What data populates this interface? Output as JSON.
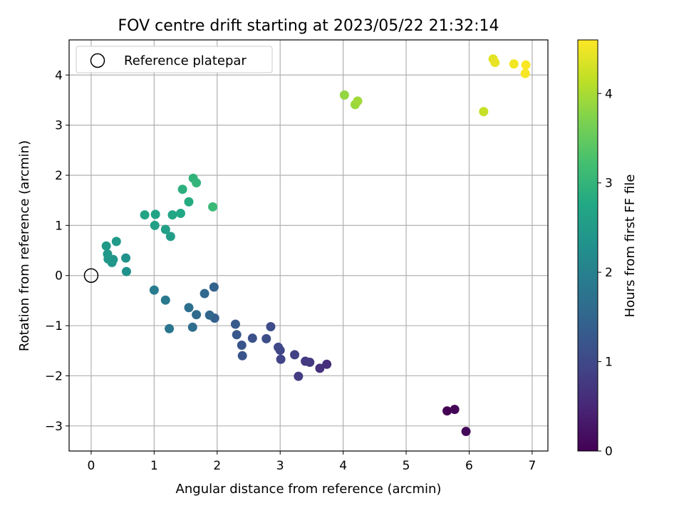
{
  "chart_data": {
    "type": "scatter",
    "title": "FOV centre drift starting at 2023/05/22 21:32:14",
    "xlabel": "Angular distance from reference (arcmin)",
    "ylabel": "Rotation from reference (arcmin)",
    "xlim": [
      -0.35,
      7.25
    ],
    "ylim": [
      -3.5,
      4.7
    ],
    "xticks": [
      0,
      1,
      2,
      3,
      4,
      5,
      6,
      7
    ],
    "xtick_labels": [
      "0",
      "1",
      "2",
      "3",
      "4",
      "5",
      "6",
      "7"
    ],
    "yticks": [
      -3,
      -2,
      -1,
      0,
      1,
      2,
      3,
      4
    ],
    "ytick_labels": [
      "−3",
      "−2",
      "−1",
      "0",
      "1",
      "2",
      "3",
      "4"
    ],
    "grid": true,
    "legend": {
      "position": "upper-left",
      "entries": [
        "Reference platepar"
      ]
    },
    "reference_point": {
      "x": 0,
      "y": 0
    },
    "colorbar": {
      "label": "Hours from first FF file",
      "colormap": "viridis",
      "range": [
        0,
        4.6
      ],
      "ticks": [
        0,
        1,
        2,
        3,
        4
      ],
      "tick_labels": [
        "0",
        "1",
        "2",
        "3",
        "4"
      ]
    },
    "points": [
      {
        "x": 5.65,
        "y": -2.7,
        "c": 0.0
      },
      {
        "x": 5.77,
        "y": -2.67,
        "c": 0.05
      },
      {
        "x": 5.95,
        "y": -3.11,
        "c": 0.1
      },
      {
        "x": 3.74,
        "y": -1.77,
        "c": 0.6
      },
      {
        "x": 3.63,
        "y": -1.85,
        "c": 0.65
      },
      {
        "x": 3.47,
        "y": -1.73,
        "c": 0.75
      },
      {
        "x": 3.4,
        "y": -1.71,
        "c": 0.78
      },
      {
        "x": 3.29,
        "y": -2.01,
        "c": 0.82
      },
      {
        "x": 3.23,
        "y": -1.58,
        "c": 0.87
      },
      {
        "x": 3.01,
        "y": -1.67,
        "c": 0.92
      },
      {
        "x": 3.0,
        "y": -1.49,
        "c": 0.95
      },
      {
        "x": 2.97,
        "y": -1.43,
        "c": 1.0
      },
      {
        "x": 2.85,
        "y": -1.02,
        "c": 1.05
      },
      {
        "x": 2.78,
        "y": -1.26,
        "c": 1.1
      },
      {
        "x": 2.56,
        "y": -1.25,
        "c": 1.15
      },
      {
        "x": 2.4,
        "y": -1.6,
        "c": 1.2
      },
      {
        "x": 2.39,
        "y": -1.39,
        "c": 1.22
      },
      {
        "x": 2.31,
        "y": -1.18,
        "c": 1.27
      },
      {
        "x": 2.29,
        "y": -0.97,
        "c": 1.32
      },
      {
        "x": 1.96,
        "y": -0.85,
        "c": 1.4
      },
      {
        "x": 1.95,
        "y": -0.23,
        "c": 1.45
      },
      {
        "x": 1.88,
        "y": -0.79,
        "c": 1.5
      },
      {
        "x": 1.8,
        "y": -0.36,
        "c": 1.55
      },
      {
        "x": 1.67,
        "y": -0.78,
        "c": 1.6
      },
      {
        "x": 1.61,
        "y": -1.03,
        "c": 1.65
      },
      {
        "x": 1.55,
        "y": -0.64,
        "c": 1.7
      },
      {
        "x": 1.24,
        "y": -1.06,
        "c": 1.78
      },
      {
        "x": 1.18,
        "y": -0.49,
        "c": 1.85
      },
      {
        "x": 1.0,
        "y": -0.29,
        "c": 1.92
      },
      {
        "x": 0.56,
        "y": 0.08,
        "c": 2.3
      },
      {
        "x": 0.55,
        "y": 0.35,
        "c": 2.33
      },
      {
        "x": 0.33,
        "y": 0.26,
        "c": 2.37
      },
      {
        "x": 0.35,
        "y": 0.32,
        "c": 2.4
      },
      {
        "x": 0.27,
        "y": 0.33,
        "c": 2.42
      },
      {
        "x": 0.26,
        "y": 0.43,
        "c": 2.44
      },
      {
        "x": 0.24,
        "y": 0.59,
        "c": 2.46
      },
      {
        "x": 0.4,
        "y": 0.68,
        "c": 2.48
      },
      {
        "x": 1.26,
        "y": 0.78,
        "c": 2.55
      },
      {
        "x": 1.18,
        "y": 0.92,
        "c": 2.58
      },
      {
        "x": 1.01,
        "y": 1.0,
        "c": 2.62
      },
      {
        "x": 1.02,
        "y": 1.22,
        "c": 2.65
      },
      {
        "x": 0.85,
        "y": 1.21,
        "c": 2.68
      },
      {
        "x": 1.29,
        "y": 1.21,
        "c": 2.72
      },
      {
        "x": 1.42,
        "y": 1.24,
        "c": 2.76
      },
      {
        "x": 1.55,
        "y": 1.47,
        "c": 2.82
      },
      {
        "x": 1.45,
        "y": 1.72,
        "c": 2.9
      },
      {
        "x": 1.62,
        "y": 1.94,
        "c": 2.96
      },
      {
        "x": 1.67,
        "y": 1.85,
        "c": 3.0
      },
      {
        "x": 1.93,
        "y": 1.37,
        "c": 3.08
      },
      {
        "x": 4.02,
        "y": 3.6,
        "c": 3.85
      },
      {
        "x": 4.19,
        "y": 3.41,
        "c": 3.9
      },
      {
        "x": 4.23,
        "y": 3.48,
        "c": 3.95
      },
      {
        "x": 6.23,
        "y": 3.27,
        "c": 4.2
      },
      {
        "x": 6.38,
        "y": 4.32,
        "c": 4.4
      },
      {
        "x": 6.41,
        "y": 4.25,
        "c": 4.45
      },
      {
        "x": 6.71,
        "y": 4.22,
        "c": 4.52
      },
      {
        "x": 6.89,
        "y": 4.03,
        "c": 4.55
      },
      {
        "x": 6.9,
        "y": 4.2,
        "c": 4.58
      }
    ]
  }
}
